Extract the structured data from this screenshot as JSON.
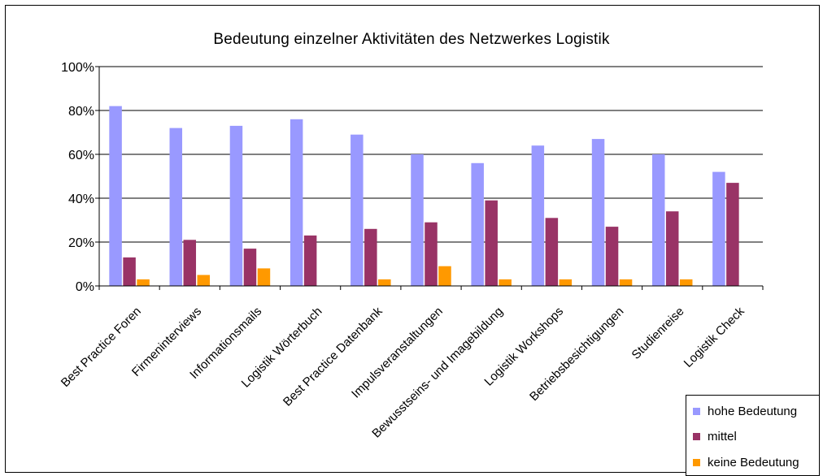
{
  "chart_data": {
    "type": "bar",
    "title": "Bedeutung einzelner Aktivitäten des Netzwerkes Logistik",
    "categories": [
      "Best Practice Foren",
      "Firmeninterviews",
      "Informationsmails",
      "Logistik Wörterbuch",
      "Best Practice Datenbank",
      "Impulsveranstaltungen",
      "Bewusstseins- und Imagebildung",
      "Logistik Workshops",
      "Betriebsbesichtigungen",
      "Studienreise",
      "Logistik Check"
    ],
    "series": [
      {
        "name": "hohe Bedeutung",
        "color": "#9999ff",
        "values": [
          82,
          72,
          73,
          76,
          69,
          60,
          56,
          64,
          67,
          60,
          52
        ]
      },
      {
        "name": "mittel",
        "color": "#993366",
        "values": [
          13,
          21,
          17,
          23,
          26,
          29,
          39,
          31,
          27,
          34,
          47
        ]
      },
      {
        "name": "keine Bedeutung",
        "color": "#ff9900",
        "values": [
          3,
          5,
          8,
          0,
          3,
          9,
          3,
          3,
          3,
          3,
          0
        ]
      }
    ],
    "yticks": [
      "0%",
      "20%",
      "40%",
      "60%",
      "80%",
      "100%"
    ],
    "ylim": [
      0,
      100
    ],
    "grid": true,
    "legend": "bottom-right"
  }
}
